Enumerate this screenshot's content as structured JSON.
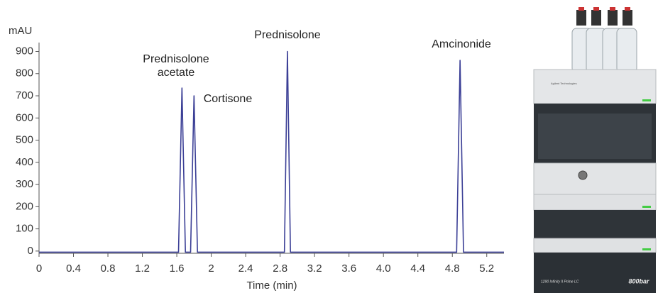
{
  "chart_data": {
    "type": "line",
    "y_label": "mAU",
    "x_label": "Time (min)",
    "x": [
      0,
      1.62,
      1.66,
      1.7,
      1.76,
      1.8,
      1.84,
      2.85,
      2.885,
      2.92,
      4.85,
      4.89,
      4.93,
      5.4
    ],
    "series": [
      {
        "color": "#3b3f96",
        "values": [
          -5,
          -5,
          735,
          -5,
          -5,
          700,
          -5,
          -5,
          900,
          -5,
          -5,
          860,
          -5,
          -5
        ]
      }
    ],
    "annotations": [
      "Prednisolone acetate",
      "Cortisone",
      "Prednisolone",
      "Amcinonide"
    ],
    "xlim": [
      0,
      5.4
    ],
    "ylim": [
      -10,
      940
    ],
    "xticks": [
      0,
      0.4,
      0.8,
      1.2,
      1.6,
      2,
      2.4,
      2.8,
      3.2,
      3.6,
      {
        "value": 4,
        "label": "4.0"
      },
      4.4,
      4.8,
      5.2
    ],
    "yticks": [
      0,
      100,
      200,
      300,
      400,
      500,
      600,
      700,
      800,
      900
    ]
  },
  "instrument": {
    "brand": "Agilent Technologies",
    "model": "1290 Infinity II Prime LC",
    "pressure": "800bar"
  }
}
